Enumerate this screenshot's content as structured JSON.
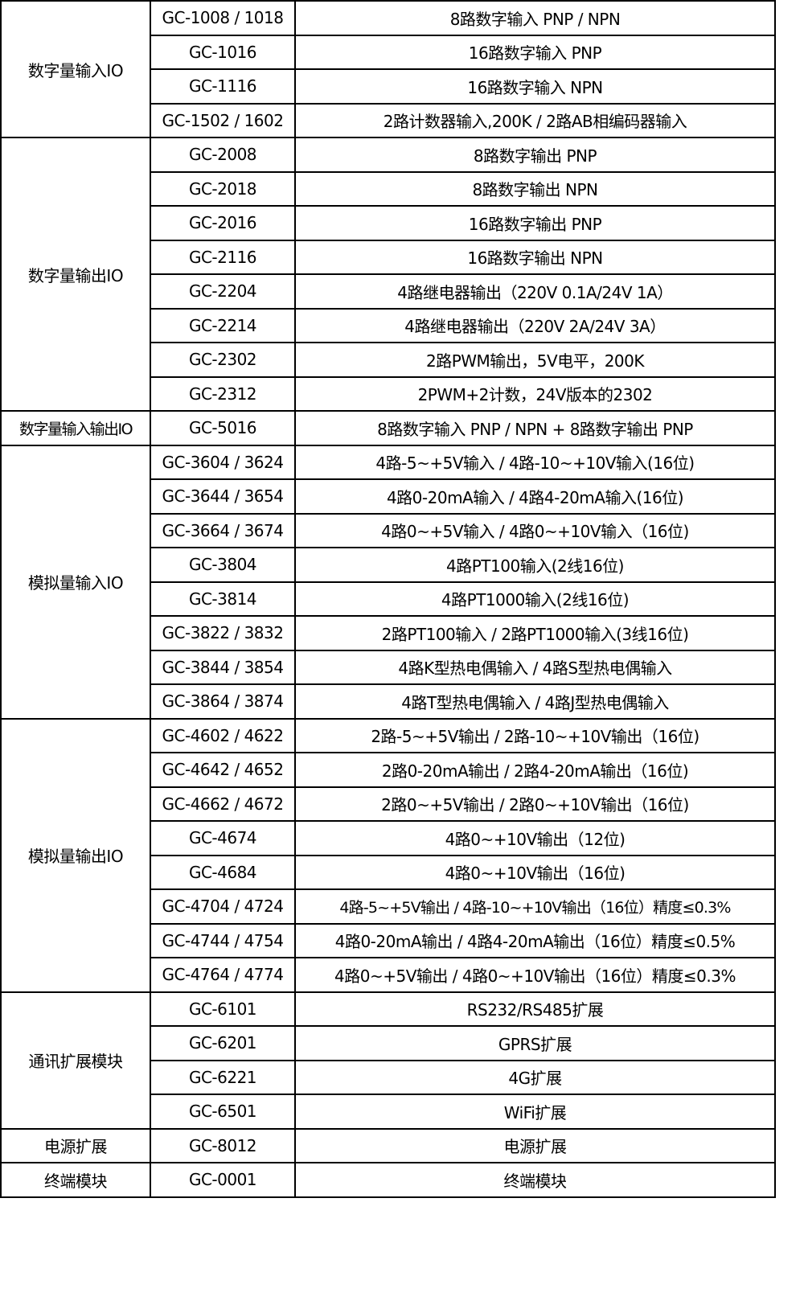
{
  "groups": [
    {
      "category": "数字量输入IO",
      "rows": [
        {
          "model": "GC-1008 / 1018",
          "desc": "8路数字输入 PNP / NPN"
        },
        {
          "model": "GC-1016",
          "desc": "16路数字输入 PNP"
        },
        {
          "model": "GC-1116",
          "desc": "16路数字输入 NPN"
        },
        {
          "model": "GC-1502 / 1602",
          "desc": "2路计数器输入,200K / 2路AB相编码器输入"
        }
      ]
    },
    {
      "category": "数字量输出IO",
      "rows": [
        {
          "model": "GC-2008",
          "desc": "8路数字输出 PNP"
        },
        {
          "model": "GC-2018",
          "desc": "8路数字输出 NPN"
        },
        {
          "model": "GC-2016",
          "desc": "16路数字输出 PNP"
        },
        {
          "model": "GC-2116",
          "desc": "16路数字输出 NPN"
        },
        {
          "model": "GC-2204",
          "desc": "4路继电器输出（220V 0.1A/24V 1A）"
        },
        {
          "model": "GC-2214",
          "desc": "4路继电器输出（220V 2A/24V 3A）"
        },
        {
          "model": "GC-2302",
          "desc": "2路PWM输出，5V电平，200K"
        },
        {
          "model": "GC-2312",
          "desc": "2PWM+2计数，24V版本的2302"
        }
      ]
    },
    {
      "category": "数字量输入输出IO",
      "rows": [
        {
          "model": "GC-5016",
          "desc": "8路数字输入 PNP / NPN + 8路数字输出 PNP"
        }
      ]
    },
    {
      "category": "模拟量输入IO",
      "rows": [
        {
          "model": "GC-3604 / 3624",
          "desc": "4路-5~+5V输入 / 4路-10~+10V输入(16位)"
        },
        {
          "model": "GC-3644 / 3654",
          "desc": "4路0-20mA输入 / 4路4-20mA输入(16位)"
        },
        {
          "model": "GC-3664 / 3674",
          "desc": "4路0~+5V输入 / 4路0~+10V输入（16位)"
        },
        {
          "model": "GC-3804",
          "desc": "4路PT100输入(2线16位)"
        },
        {
          "model": "GC-3814",
          "desc": "4路PT1000输入(2线16位)"
        },
        {
          "model": "GC-3822 / 3832",
          "desc": "2路PT100输入 / 2路PT1000输入(3线16位)"
        },
        {
          "model": "GC-3844 / 3854",
          "desc": "4路K型热电偶输入 / 4路S型热电偶输入"
        },
        {
          "model": "GC-3864 / 3874",
          "desc": "4路T型热电偶输入 / 4路J型热电偶输入"
        }
      ]
    },
    {
      "category": "模拟量输出IO",
      "rows": [
        {
          "model": "GC-4602 / 4622",
          "desc": "2路-5~+5V输出 / 2路-10~+10V输出（16位)"
        },
        {
          "model": "GC-4642 / 4652",
          "desc": "2路0-20mA输出 / 2路4-20mA输出（16位)"
        },
        {
          "model": "GC-4662 / 4672",
          "desc": "2路0~+5V输出 / 2路0~+10V输出（16位)"
        },
        {
          "model": "GC-4674",
          "desc": "4路0~+10V输出（12位)"
        },
        {
          "model": "GC-4684",
          "desc": "4路0~+10V输出（16位)"
        },
        {
          "model": "GC-4704 / 4724",
          "desc": "4路-5~+5V输出 / 4路-10~+10V输出（16位）精度≤0.3%"
        },
        {
          "model": "GC-4744 / 4754",
          "desc": "4路0-20mA输出 / 4路4-20mA输出（16位）精度≤0.5%"
        },
        {
          "model": "GC-4764 / 4774",
          "desc": "4路0~+5V输出 / 4路0~+10V输出（16位）精度≤0.3%"
        }
      ]
    },
    {
      "category": "通讯扩展模块",
      "rows": [
        {
          "model": "GC-6101",
          "desc": "RS232/RS485扩展"
        },
        {
          "model": "GC-6201",
          "desc": "GPRS扩展"
        },
        {
          "model": "GC-6221",
          "desc": "4G扩展"
        },
        {
          "model": "GC-6501",
          "desc": "WiFi扩展"
        }
      ]
    },
    {
      "category": "电源扩展",
      "rows": [
        {
          "model": "GC-8012",
          "desc": "电源扩展"
        }
      ]
    },
    {
      "category": "终端模块",
      "rows": [
        {
          "model": "GC-0001",
          "desc": "终端模块"
        }
      ]
    }
  ]
}
